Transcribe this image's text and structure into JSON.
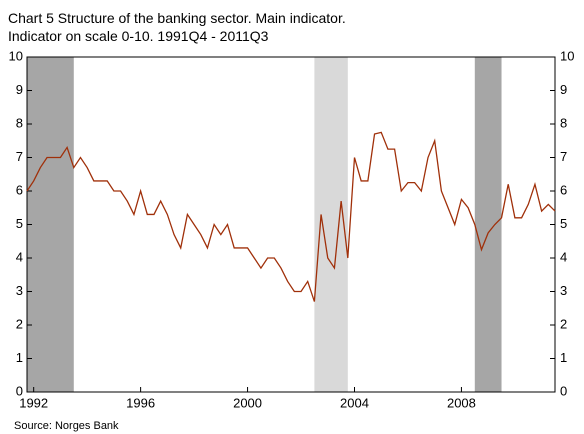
{
  "chart_data": {
    "type": "line",
    "title": "Chart 5 Structure of the banking sector. Main indicator.",
    "subtitle": "Indicator on scale 0-10. 1991Q4 - 2011Q3",
    "source": "Source: Norges Bank",
    "x": [
      1991.75,
      1992,
      1992.25,
      1992.5,
      1992.75,
      1993,
      1993.25,
      1993.5,
      1993.75,
      1994,
      1994.25,
      1994.5,
      1994.75,
      1995,
      1995.25,
      1995.5,
      1995.75,
      1996,
      1996.25,
      1996.5,
      1996.75,
      1997,
      1997.25,
      1997.5,
      1997.75,
      1998,
      1998.25,
      1998.5,
      1998.75,
      1999,
      1999.25,
      1999.5,
      1999.75,
      2000,
      2000.25,
      2000.5,
      2000.75,
      2001,
      2001.25,
      2001.5,
      2001.75,
      2002,
      2002.25,
      2002.5,
      2002.75,
      2003,
      2003.25,
      2003.5,
      2003.75,
      2004,
      2004.25,
      2004.5,
      2004.75,
      2005,
      2005.25,
      2005.5,
      2005.75,
      2006,
      2006.25,
      2006.5,
      2006.75,
      2007,
      2007.25,
      2007.5,
      2007.75,
      2008,
      2008.25,
      2008.5,
      2008.75,
      2009,
      2009.25,
      2009.5,
      2009.75,
      2010,
      2010.25,
      2010.5,
      2010.75,
      2011,
      2011.25,
      2011.5
    ],
    "series": [
      {
        "name": "Main indicator",
        "color": "#a0300a",
        "values": [
          6.0,
          6.3,
          6.7,
          7.0,
          7.0,
          7.0,
          7.3,
          6.7,
          7.0,
          6.7,
          6.3,
          6.3,
          6.3,
          6.0,
          6.0,
          5.7,
          5.3,
          6.0,
          5.3,
          5.3,
          5.7,
          5.3,
          4.7,
          4.3,
          5.3,
          5.0,
          4.7,
          4.3,
          5.0,
          4.7,
          5.0,
          4.3,
          4.3,
          4.3,
          4.0,
          3.7,
          4.0,
          4.0,
          3.7,
          3.3,
          3.0,
          3.0,
          3.3,
          2.7,
          5.3,
          4.0,
          3.7,
          5.7,
          4.0,
          7.0,
          6.3,
          6.3,
          7.7,
          7.75,
          7.25,
          7.25,
          6.0,
          6.25,
          6.25,
          6.0,
          7.0,
          7.5,
          6.0,
          5.5,
          5.0,
          5.75,
          5.5,
          5.0,
          4.25,
          4.75,
          5.0,
          5.2,
          6.2,
          5.2,
          5.2,
          5.6,
          6.2,
          5.4,
          5.6,
          5.4
        ]
      }
    ],
    "shaded_regions": [
      {
        "x": [
          1991.75,
          1993.5
        ],
        "color": "#a6a6a6"
      },
      {
        "x": [
          2002.5,
          2003.75
        ],
        "color": "#d9d9d9"
      },
      {
        "x": [
          2008.5,
          2009.5
        ],
        "color": "#a6a6a6"
      }
    ],
    "xlim": [
      1991.75,
      2011.5
    ],
    "xticks": [
      1992,
      1996,
      2000,
      2004,
      2008
    ],
    "ylim": [
      0,
      10
    ],
    "yticks": [
      0,
      1,
      2,
      3,
      4,
      5,
      6,
      7,
      8,
      9,
      10
    ],
    "y2lim": [
      0,
      10
    ],
    "y2ticks": [
      0,
      1,
      2,
      3,
      4,
      5,
      6,
      7,
      8,
      9,
      10
    ]
  }
}
